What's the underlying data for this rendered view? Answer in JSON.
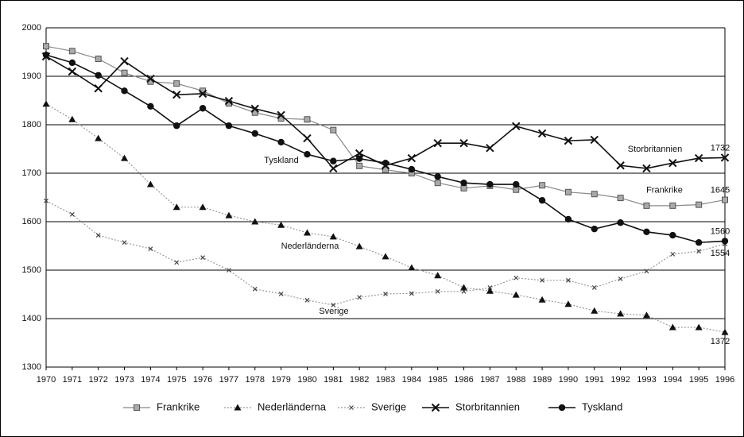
{
  "chart_data": {
    "type": "line",
    "categories": [
      "1970",
      "1971",
      "1972",
      "1973",
      "1974",
      "1975",
      "1976",
      "1977",
      "1978",
      "1979",
      "1980",
      "1981",
      "1982",
      "1983",
      "1984",
      "1985",
      "1986",
      "1987",
      "1988",
      "1989",
      "1990",
      "1991",
      "1992",
      "1993",
      "1994",
      "1995",
      "1996"
    ],
    "ylim": [
      1300,
      2000
    ],
    "yticks": [
      1300,
      1400,
      1500,
      1600,
      1700,
      1800,
      1900,
      2000
    ],
    "grid": true,
    "legend": "bottom",
    "data_labels": "last",
    "series": [
      {
        "name": "Frankrike",
        "color": "#888888",
        "marker": "square",
        "dash": "solid",
        "values": [
          1962,
          1952,
          1936,
          1907,
          1889,
          1885,
          1870,
          1844,
          1825,
          1813,
          1811,
          1789,
          1715,
          1707,
          1700,
          1680,
          1669,
          1674,
          1666,
          1675,
          1661,
          1657,
          1649,
          1633,
          1633,
          1635,
          1645
        ]
      },
      {
        "name": "Nederländerna",
        "color": "#999999",
        "marker": "triangle",
        "dash": "dotted",
        "values": [
          1843,
          1811,
          1772,
          1731,
          1677,
          1630,
          1630,
          1613,
          1600,
          1593,
          1577,
          1569,
          1549,
          1528,
          1505,
          1489,
          1464,
          1457,
          1449,
          1439,
          1430,
          1416,
          1410,
          1407,
          1382,
          1382,
          1372
        ]
      },
      {
        "name": "Sverige",
        "color": "#999999",
        "marker": "x",
        "dash": "dotted",
        "values": [
          1643,
          1615,
          1572,
          1557,
          1544,
          1516,
          1526,
          1500,
          1461,
          1451,
          1438,
          1428,
          1444,
          1451,
          1452,
          1456,
          1456,
          1464,
          1484,
          1479,
          1479,
          1464,
          1482,
          1498,
          1533,
          1539,
          1554
        ]
      },
      {
        "name": "Storbritannien",
        "color": "#111111",
        "marker": "cross",
        "dash": "solid",
        "values": [
          1941,
          1910,
          1875,
          1931,
          1895,
          1862,
          1864,
          1849,
          1833,
          1820,
          1772,
          1710,
          1741,
          1716,
          1731,
          1762,
          1762,
          1752,
          1797,
          1782,
          1767,
          1769,
          1716,
          1710,
          1721,
          1731,
          1732
        ]
      },
      {
        "name": "Tyskland",
        "color": "#111111",
        "marker": "circle",
        "dash": "solid",
        "values": [
          1944,
          1928,
          1902,
          1870,
          1838,
          1798,
          1834,
          1798,
          1782,
          1764,
          1739,
          1725,
          1730,
          1721,
          1708,
          1693,
          1680,
          1677,
          1677,
          1644,
          1605,
          1585,
          1598,
          1579,
          1572,
          1557,
          1560
        ]
      }
    ]
  }
}
